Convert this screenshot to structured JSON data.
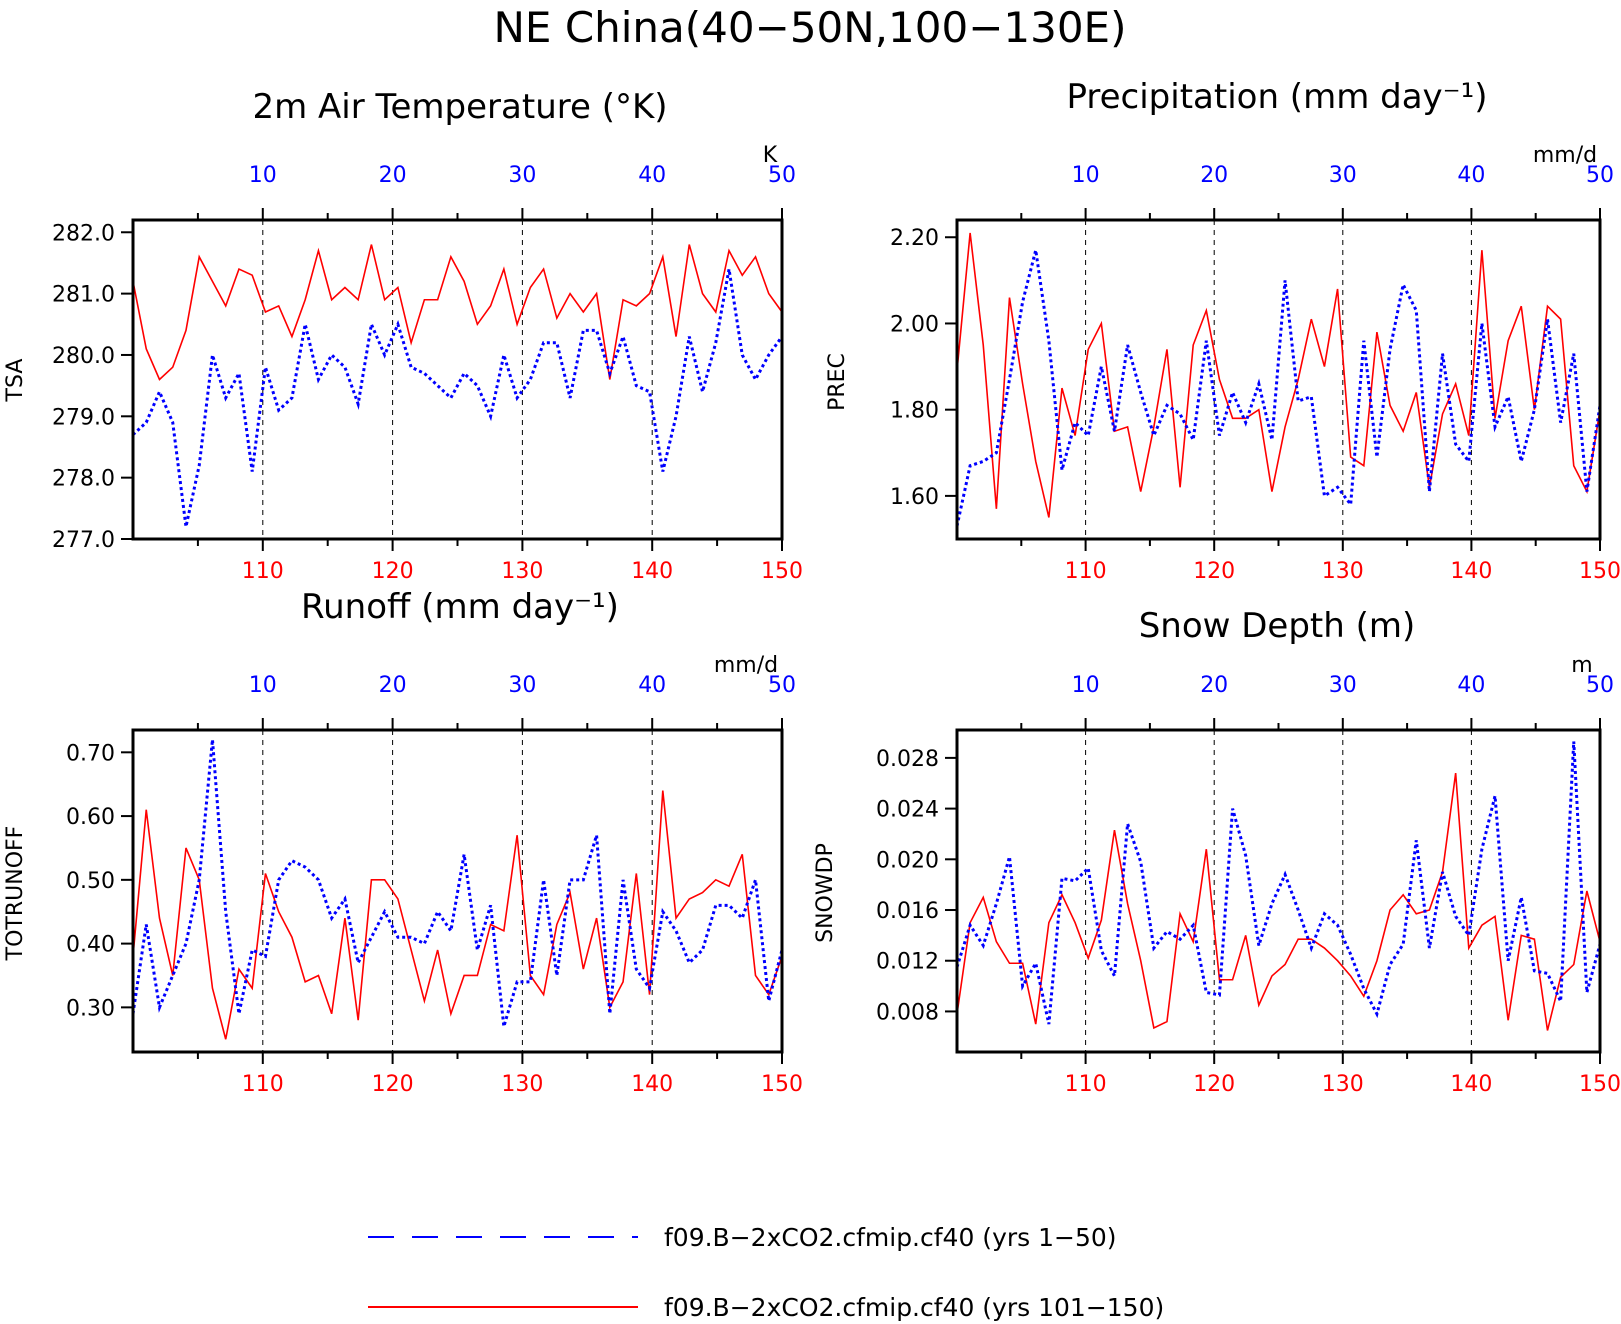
{
  "figure_title": "NE China(40−50N,100−130E)",
  "legend": [
    {
      "label": "f09.B−2xCO2.cfmip.cf40 (yrs 1−50)",
      "color": "#0000ff",
      "style": "dashed"
    },
    {
      "label": "f09.B−2xCO2.cfmip.cf40 (yrs 101−150)",
      "color": "#ff0000",
      "style": "solid"
    }
  ],
  "colors": {
    "series_a": "#0000ff",
    "series_b": "#ff0000",
    "axis": "#000000"
  },
  "chart_data": [
    {
      "type": "line",
      "title": "2m Air Temperature (°K)",
      "ylabel": "TSA",
      "units": "K",
      "bottom_axis_ticks": [
        "110",
        "120",
        "130",
        "140",
        "150"
      ],
      "top_axis_ticks": [
        "10",
        "20",
        "30",
        "40",
        "50"
      ],
      "ylim": [
        277.0,
        282.2
      ],
      "yticks": [
        277.0,
        278.0,
        279.0,
        280.0,
        281.0,
        282.0
      ],
      "ytick_labels": [
        "277.0",
        "278.0",
        "279.0",
        "280.0",
        "281.0",
        "282.0"
      ],
      "series": [
        {
          "values": [
            278.7,
            278.9,
            279.4,
            278.9,
            277.2,
            278.2,
            280.0,
            279.3,
            279.7,
            278.1,
            279.8,
            279.1,
            279.3,
            280.5,
            279.6,
            280.0,
            279.8,
            279.2,
            280.5,
            280.0,
            280.5,
            279.8,
            279.7,
            279.5,
            279.3,
            279.7,
            279.5,
            279.0,
            280.0,
            279.3,
            279.6,
            280.2,
            280.2,
            279.3,
            280.4,
            280.4,
            279.7,
            280.3,
            279.5,
            279.4,
            278.1,
            279.0,
            280.3,
            279.4,
            280.2,
            281.4,
            280.0,
            279.6,
            280.0,
            280.3
          ]
        },
        {
          "values": [
            281.2,
            280.1,
            279.6,
            279.8,
            280.4,
            281.6,
            281.2,
            280.8,
            281.4,
            281.3,
            280.7,
            280.8,
            280.3,
            280.9,
            281.7,
            280.9,
            281.1,
            280.9,
            281.8,
            280.9,
            281.1,
            280.2,
            280.9,
            280.9,
            281.6,
            281.2,
            280.5,
            280.8,
            281.4,
            280.5,
            281.1,
            281.4,
            280.6,
            281.0,
            280.7,
            281.0,
            279.6,
            280.9,
            280.8,
            281.0,
            281.6,
            280.3,
            281.8,
            281.0,
            280.7,
            281.7,
            281.3,
            281.6,
            281.0,
            280.7
          ]
        }
      ]
    },
    {
      "type": "line",
      "title": "Precipitation (mm day⁻¹)",
      "ylabel": "PREC",
      "units": "mm/d",
      "bottom_axis_ticks": [
        "110",
        "120",
        "130",
        "140",
        "150"
      ],
      "top_axis_ticks": [
        "10",
        "20",
        "30",
        "40",
        "50"
      ],
      "ylim": [
        1.5,
        2.24
      ],
      "yticks": [
        1.6,
        1.8,
        2.0,
        2.2
      ],
      "ytick_labels": [
        "1.60",
        "1.80",
        "2.00",
        "2.20"
      ],
      "series": [
        {
          "values": [
            1.53,
            1.67,
            1.68,
            1.7,
            1.87,
            2.05,
            2.17,
            1.96,
            1.66,
            1.77,
            1.74,
            1.9,
            1.75,
            1.95,
            1.84,
            1.74,
            1.81,
            1.79,
            1.73,
            1.96,
            1.74,
            1.84,
            1.77,
            1.86,
            1.73,
            2.1,
            1.82,
            1.83,
            1.6,
            1.62,
            1.58,
            1.96,
            1.69,
            1.94,
            2.09,
            2.03,
            1.61,
            1.93,
            1.72,
            1.68,
            2.0,
            1.76,
            1.83,
            1.68,
            1.8,
            2.01,
            1.77,
            1.93,
            1.61,
            1.81
          ]
        },
        {
          "values": [
            1.89,
            2.21,
            1.95,
            1.57,
            2.06,
            1.86,
            1.68,
            1.55,
            1.85,
            1.74,
            1.94,
            2.0,
            1.75,
            1.76,
            1.61,
            1.76,
            1.94,
            1.62,
            1.95,
            2.03,
            1.87,
            1.78,
            1.78,
            1.8,
            1.61,
            1.76,
            1.87,
            2.01,
            1.9,
            2.08,
            1.69,
            1.67,
            1.98,
            1.81,
            1.75,
            1.84,
            1.62,
            1.79,
            1.86,
            1.74,
            2.17,
            1.78,
            1.96,
            2.04,
            1.8,
            2.04,
            2.01,
            1.67,
            1.61,
            1.8
          ]
        }
      ]
    },
    {
      "type": "line",
      "title": "Runoff (mm day⁻¹)",
      "ylabel": "TOTRUNOFF",
      "units": "mm/d",
      "bottom_axis_ticks": [
        "110",
        "120",
        "130",
        "140",
        "150"
      ],
      "top_axis_ticks": [
        "10",
        "20",
        "30",
        "40",
        "50"
      ],
      "ylim": [
        0.23,
        0.735
      ],
      "yticks": [
        0.3,
        0.4,
        0.5,
        0.6,
        0.7
      ],
      "ytick_labels": [
        "0.30",
        "0.40",
        "0.50",
        "0.60",
        "0.70"
      ],
      "series": [
        {
          "values": [
            0.29,
            0.43,
            0.3,
            0.35,
            0.4,
            0.5,
            0.72,
            0.45,
            0.29,
            0.39,
            0.38,
            0.5,
            0.53,
            0.52,
            0.5,
            0.44,
            0.47,
            0.37,
            0.41,
            0.45,
            0.41,
            0.41,
            0.4,
            0.45,
            0.42,
            0.54,
            0.39,
            0.46,
            0.27,
            0.34,
            0.34,
            0.5,
            0.35,
            0.5,
            0.5,
            0.57,
            0.29,
            0.5,
            0.36,
            0.33,
            0.45,
            0.42,
            0.37,
            0.39,
            0.46,
            0.46,
            0.44,
            0.5,
            0.31,
            0.39
          ]
        },
        {
          "values": [
            0.38,
            0.61,
            0.44,
            0.35,
            0.55,
            0.5,
            0.33,
            0.25,
            0.36,
            0.33,
            0.51,
            0.45,
            0.41,
            0.34,
            0.35,
            0.29,
            0.44,
            0.28,
            0.5,
            0.5,
            0.47,
            0.39,
            0.31,
            0.39,
            0.29,
            0.35,
            0.35,
            0.43,
            0.42,
            0.57,
            0.35,
            0.32,
            0.43,
            0.48,
            0.36,
            0.44,
            0.3,
            0.34,
            0.51,
            0.32,
            0.64,
            0.44,
            0.47,
            0.48,
            0.5,
            0.49,
            0.54,
            0.35,
            0.32,
            0.38
          ]
        }
      ]
    },
    {
      "type": "line",
      "title": "Snow Depth (m)",
      "ylabel": "SNOWDP",
      "units": "m",
      "bottom_axis_ticks": [
        "110",
        "120",
        "130",
        "140",
        "150"
      ],
      "top_axis_ticks": [
        "10",
        "20",
        "30",
        "40",
        "50"
      ],
      "ylim": [
        0.0048,
        0.0302
      ],
      "yticks": [
        0.008,
        0.012,
        0.016,
        0.02,
        0.024,
        0.028
      ],
      "ytick_labels": [
        "0.008",
        "0.012",
        "0.016",
        "0.020",
        "0.024",
        "0.028"
      ],
      "series": [
        {
          "values": [
            0.0115,
            0.0148,
            0.0132,
            0.0165,
            0.0202,
            0.01,
            0.0118,
            0.007,
            0.0185,
            0.0183,
            0.0193,
            0.0128,
            0.0108,
            0.0228,
            0.0198,
            0.013,
            0.0143,
            0.0137,
            0.0148,
            0.0095,
            0.0093,
            0.024,
            0.0203,
            0.0132,
            0.0165,
            0.0188,
            0.016,
            0.013,
            0.0157,
            0.0148,
            0.0125,
            0.0098,
            0.0078,
            0.0117,
            0.0133,
            0.0215,
            0.013,
            0.019,
            0.0155,
            0.014,
            0.0208,
            0.025,
            0.012,
            0.017,
            0.0112,
            0.011,
            0.0088,
            0.0293,
            0.0095,
            0.0133
          ]
        },
        {
          "values": [
            0.0078,
            0.015,
            0.017,
            0.0135,
            0.0118,
            0.0118,
            0.007,
            0.015,
            0.0172,
            0.015,
            0.0122,
            0.0152,
            0.0223,
            0.0165,
            0.012,
            0.0067,
            0.0072,
            0.0157,
            0.0135,
            0.0208,
            0.0105,
            0.0105,
            0.014,
            0.0085,
            0.0108,
            0.0117,
            0.0137,
            0.0137,
            0.013,
            0.012,
            0.0108,
            0.0092,
            0.012,
            0.016,
            0.0172,
            0.0157,
            0.016,
            0.019,
            0.0268,
            0.013,
            0.0148,
            0.0155,
            0.0073,
            0.014,
            0.0137,
            0.0065,
            0.0107,
            0.0117,
            0.0175,
            0.0135
          ]
        }
      ]
    }
  ]
}
